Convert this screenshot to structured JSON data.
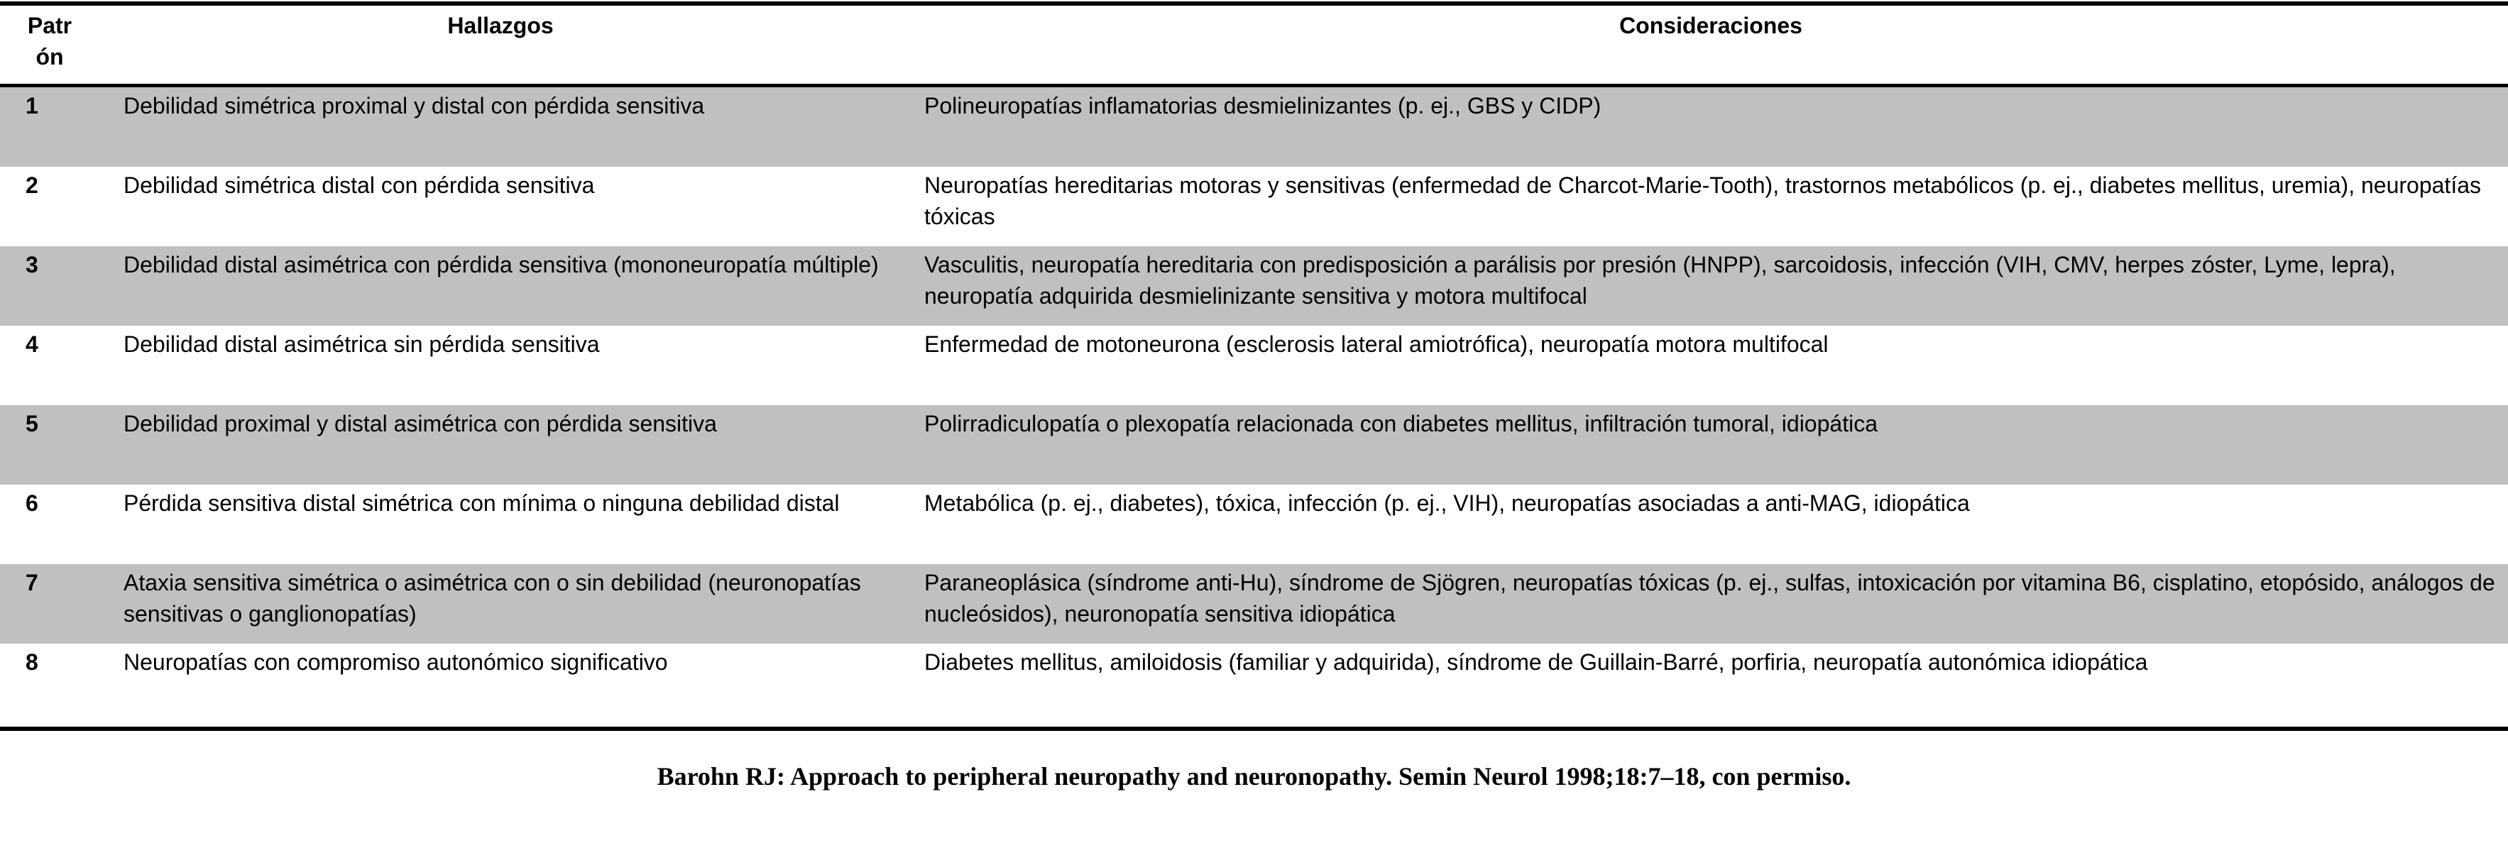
{
  "table": {
    "headers": {
      "patron": "Patr\nón",
      "hallazgos": "Hallazgos",
      "consideraciones": "Consideraciones"
    },
    "rows": [
      {
        "num": "1",
        "hallazgos": "Debilidad simétrica proximal y distal con pérdida sensitiva",
        "consideraciones": "Polineuropatías inflamatorias desmielinizantes (p. ej., GBS y CIDP)",
        "shaded": true
      },
      {
        "num": "2",
        "hallazgos": "Debilidad simétrica distal con pérdida sensitiva",
        "consideraciones": "Neuropatías hereditarias motoras y sensitivas (enfermedad de Charcot-Marie-Tooth), trastornos metabólicos (p. ej., diabetes mellitus, uremia), neuropatías tóxicas",
        "shaded": false
      },
      {
        "num": "3",
        "hallazgos": "Debilidad distal asimétrica con pérdida sensitiva (mononeuropatía múltiple)",
        "consideraciones": "Vasculitis, neuropatía hereditaria con predisposición a parálisis por presión (HNPP), sarcoidosis, infección (VIH, CMV, herpes zóster, Lyme, lepra), neuropatía adquirida desmielinizante sensitiva y motora multifocal",
        "shaded": true
      },
      {
        "num": "4",
        "hallazgos": "Debilidad distal asimétrica sin pérdida sensitiva",
        "consideraciones": "Enfermedad de motoneurona (esclerosis lateral amiotrófica), neuropatía motora multifocal",
        "shaded": false
      },
      {
        "num": "5",
        "hallazgos": "Debilidad proximal y distal asimétrica con pérdida sensitiva",
        "consideraciones": "Polirradiculopatía o plexopatía relacionada con diabetes mellitus, infiltración tumoral, idiopática",
        "shaded": true
      },
      {
        "num": "6",
        "hallazgos": "Pérdida sensitiva distal simétrica con mínima o ninguna debilidad distal",
        "consideraciones": "Metabólica (p. ej., diabetes), tóxica, infección (p. ej., VIH), neuropatías asociadas a anti-MAG, idiopática",
        "shaded": false
      },
      {
        "num": "7",
        "hallazgos": "Ataxia sensitiva simétrica o asimétrica con o sin debilidad (neuronopatías sensitivas o ganglionopatías)",
        "consideraciones": "Paraneoplásica (síndrome anti-Hu), síndrome de Sjögren, neuropatías tóxicas (p. ej., sulfas, intoxicación por vitamina B6, cisplatino, etopósido, análogos de nucleósidos), neuronopatía sensitiva idiopática",
        "shaded": true
      },
      {
        "num": "8",
        "hallazgos": "Neuropatías con compromiso autonómico significativo",
        "consideraciones": "Diabetes mellitus, amiloidosis (familiar y adquirida), síndrome de Guillain-Barré, porfiria, neuropatía autonómica idiopática",
        "shaded": false
      }
    ],
    "shade_color": "#c0c0c0"
  },
  "footnote": "Barohn RJ: Approach to peripheral neuropathy and neuronopathy. Semin Neurol 1998;18:7–18, con permiso."
}
